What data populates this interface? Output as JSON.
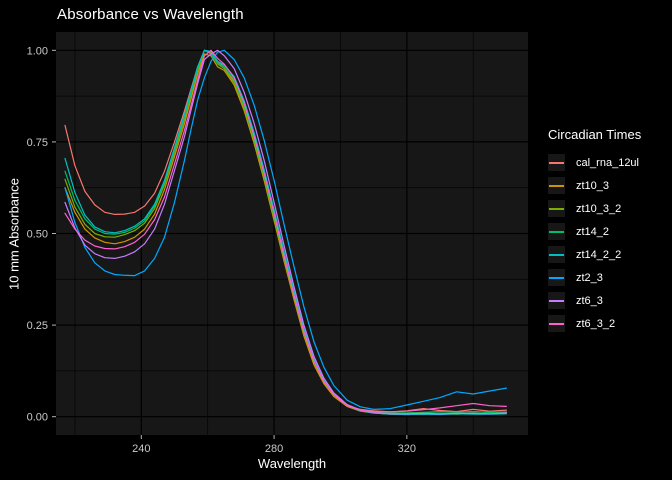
{
  "chart_data": {
    "type": "line",
    "title": "Absorbance vs Wavelength",
    "xlabel": "Wavelength",
    "ylabel": "10 mm Absorbance",
    "legend_title": "Circadian Times",
    "legend_position": "right",
    "grid": true,
    "colors": {
      "figure_background": "#000000",
      "panel_background": "#171717",
      "grid_major": "#000000",
      "grid_minor": "#060606",
      "title_text": "#ffffff",
      "axis_text": "#c9c9c9",
      "tick_mark": "#b3b3b3"
    },
    "xlim": [
      214.3,
      356.5
    ],
    "ylim": [
      -0.05,
      1.05
    ],
    "x_ticks": [
      240,
      280,
      320
    ],
    "x_tick_labels": [
      "240",
      "280",
      "320"
    ],
    "x_minor_ticks": [
      220,
      260,
      300,
      340
    ],
    "y_ticks": [
      0.0,
      0.25,
      0.5,
      0.75,
      1.0
    ],
    "y_tick_labels": [
      "0.00",
      "0.25",
      "0.50",
      "0.75",
      "1.00"
    ],
    "y_minor_ticks": [
      0.125,
      0.375,
      0.625,
      0.875
    ],
    "x": [
      217,
      220,
      223,
      226,
      229,
      232,
      235,
      238,
      241,
      244,
      247,
      250,
      253,
      255,
      257,
      259,
      261,
      263,
      265,
      268,
      271,
      274,
      277,
      280,
      283,
      286,
      289,
      292,
      295,
      298,
      302,
      306,
      310,
      315,
      320,
      325,
      330,
      335,
      340,
      345,
      350
    ],
    "series": [
      {
        "name": "cal_rna_12ul",
        "color": "#F8766D",
        "values": [
          0.795,
          0.685,
          0.615,
          0.578,
          0.558,
          0.552,
          0.553,
          0.558,
          0.575,
          0.61,
          0.67,
          0.75,
          0.835,
          0.895,
          0.955,
          1.0,
          0.995,
          0.97,
          0.955,
          0.915,
          0.845,
          0.755,
          0.655,
          0.545,
          0.43,
          0.32,
          0.225,
          0.15,
          0.095,
          0.06,
          0.03,
          0.02,
          0.016,
          0.013,
          0.016,
          0.022,
          0.017,
          0.014,
          0.02,
          0.015,
          0.018
        ]
      },
      {
        "name": "zt10_3",
        "color": "#CD9600",
        "values": [
          0.625,
          0.558,
          0.512,
          0.488,
          0.476,
          0.472,
          0.478,
          0.49,
          0.512,
          0.553,
          0.62,
          0.71,
          0.8,
          0.868,
          0.935,
          0.99,
          0.985,
          0.955,
          0.945,
          0.905,
          0.835,
          0.745,
          0.645,
          0.535,
          0.425,
          0.32,
          0.22,
          0.142,
          0.09,
          0.055,
          0.028,
          0.015,
          0.01,
          0.007,
          0.006,
          0.007,
          0.008,
          0.007,
          0.009,
          0.008,
          0.009
        ]
      },
      {
        "name": "zt10_3_2",
        "color": "#7CAE00",
        "values": [
          0.648,
          0.572,
          0.525,
          0.5,
          0.491,
          0.49,
          0.497,
          0.508,
          0.528,
          0.568,
          0.633,
          0.722,
          0.812,
          0.878,
          0.945,
          1.0,
          0.992,
          0.963,
          0.95,
          0.912,
          0.842,
          0.752,
          0.652,
          0.542,
          0.432,
          0.327,
          0.228,
          0.15,
          0.096,
          0.06,
          0.031,
          0.017,
          0.012,
          0.01,
          0.01,
          0.012,
          0.014,
          0.012,
          0.014,
          0.012,
          0.012
        ]
      },
      {
        "name": "zt14_2",
        "color": "#00BE67",
        "values": [
          0.67,
          0.59,
          0.54,
          0.512,
          0.5,
          0.498,
          0.503,
          0.515,
          0.535,
          0.575,
          0.64,
          0.73,
          0.82,
          0.885,
          0.95,
          1.0,
          0.99,
          0.965,
          0.955,
          0.92,
          0.85,
          0.76,
          0.66,
          0.55,
          0.44,
          0.335,
          0.235,
          0.155,
          0.1,
          0.062,
          0.032,
          0.018,
          0.013,
          0.01,
          0.01,
          0.011,
          0.013,
          0.012,
          0.014,
          0.011,
          0.013
        ]
      },
      {
        "name": "zt14_2_2",
        "color": "#00BFC4",
        "values": [
          0.705,
          0.612,
          0.55,
          0.518,
          0.505,
          0.502,
          0.508,
          0.52,
          0.54,
          0.58,
          0.645,
          0.735,
          0.825,
          0.89,
          0.955,
          1.0,
          0.997,
          0.97,
          0.96,
          0.928,
          0.862,
          0.775,
          0.675,
          0.565,
          0.452,
          0.343,
          0.24,
          0.158,
          0.1,
          0.063,
          0.031,
          0.016,
          0.01,
          0.007,
          0.006,
          0.007,
          0.006,
          0.008,
          0.007,
          0.007,
          0.008
        ]
      },
      {
        "name": "zt2_3",
        "color": "#00A9FF",
        "values": [
          0.625,
          0.53,
          0.462,
          0.42,
          0.398,
          0.388,
          0.386,
          0.385,
          0.398,
          0.432,
          0.49,
          0.585,
          0.7,
          0.785,
          0.865,
          0.925,
          0.97,
          0.995,
          1.0,
          0.975,
          0.925,
          0.85,
          0.755,
          0.645,
          0.525,
          0.41,
          0.3,
          0.205,
          0.135,
          0.085,
          0.045,
          0.027,
          0.02,
          0.022,
          0.032,
          0.042,
          0.052,
          0.068,
          0.062,
          0.07,
          0.078
        ]
      },
      {
        "name": "zt6_3",
        "color": "#C77CFF",
        "values": [
          0.585,
          0.515,
          0.468,
          0.445,
          0.434,
          0.432,
          0.438,
          0.45,
          0.472,
          0.512,
          0.58,
          0.672,
          0.765,
          0.838,
          0.91,
          0.975,
          0.99,
          1.0,
          0.985,
          0.95,
          0.885,
          0.8,
          0.7,
          0.585,
          0.468,
          0.355,
          0.25,
          0.165,
          0.105,
          0.065,
          0.033,
          0.018,
          0.011,
          0.008,
          0.008,
          0.009,
          0.008,
          0.009,
          0.009,
          0.008,
          0.01
        ]
      },
      {
        "name": "zt6_3_2",
        "color": "#FF61CC",
        "values": [
          0.555,
          0.512,
          0.482,
          0.466,
          0.459,
          0.458,
          0.464,
          0.476,
          0.498,
          0.538,
          0.6,
          0.69,
          0.782,
          0.85,
          0.92,
          0.985,
          1.0,
          0.978,
          0.962,
          0.925,
          0.855,
          0.765,
          0.665,
          0.555,
          0.44,
          0.332,
          0.232,
          0.152,
          0.096,
          0.06,
          0.03,
          0.018,
          0.014,
          0.013,
          0.015,
          0.019,
          0.024,
          0.03,
          0.036,
          0.03,
          0.028
        ]
      }
    ]
  }
}
